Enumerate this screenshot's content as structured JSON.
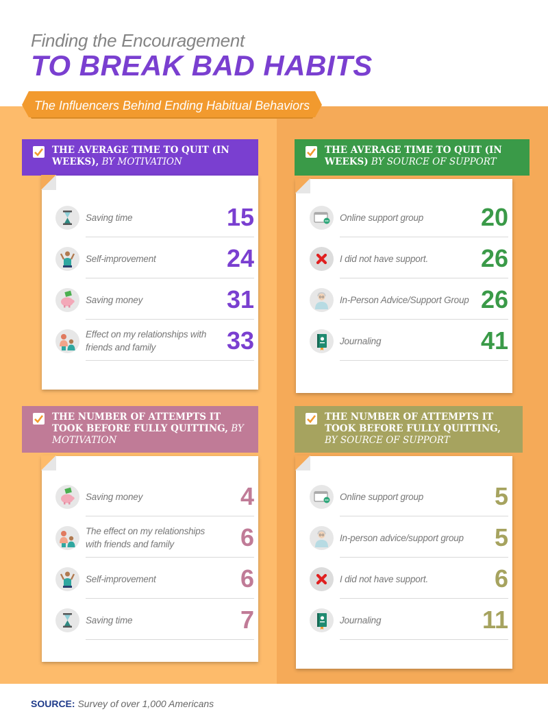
{
  "title": {
    "line1": "Finding the Encouragement",
    "line2": "TO BREAK BAD HABITS"
  },
  "subtitle": "The Influencers Behind Ending Habitual Behaviors",
  "colors": {
    "purple": "#7a3fd0",
    "green": "#3a9a48",
    "mauve": "#c07b97",
    "olive": "#a6a35f",
    "orange": "#f29a2e"
  },
  "chart_data": [
    {
      "type": "table",
      "title_bold": "THE AVERAGE TIME TO QUIT (IN WEEKS),",
      "title_italic": "BY MOTIVATION",
      "categories": [
        "Saving time",
        "Self-improvement",
        "Saving money",
        "Effect on my relationships with friends and family"
      ],
      "values": [
        15,
        24,
        31,
        33
      ],
      "icons": [
        "hourglass-icon",
        "person-cheer-icon",
        "piggy-bank-icon",
        "family-icon"
      ]
    },
    {
      "type": "table",
      "title_bold": "THE AVERAGE TIME TO QUIT (IN WEEKS)",
      "title_italic": "BY SOURCE OF SUPPORT",
      "categories": [
        "Online support group",
        "I did not have support.",
        "In-Person Advice/Support Group",
        "Journaling"
      ],
      "values": [
        20,
        26,
        26,
        41
      ],
      "icons": [
        "computer-chat-icon",
        "red-x-icon",
        "elder-person-icon",
        "journal-icon"
      ]
    },
    {
      "type": "table",
      "title_bold": "THE NUMBER OF ATTEMPTS IT TOOK BEFORE FULLY QUITTING,",
      "title_italic": "BY MOTIVATION",
      "categories": [
        "Saving money",
        "The effect on my relationships with friends and family",
        "Self-improvement",
        "Saving time"
      ],
      "values": [
        4,
        6,
        6,
        7
      ],
      "icons": [
        "piggy-bank-icon",
        "family-icon",
        "person-cheer-icon",
        "hourglass-icon"
      ]
    },
    {
      "type": "table",
      "title_bold": "THE NUMBER OF ATTEMPTS IT TOOK BEFORE FULLY QUITTING,",
      "title_italic": "BY SOURCE OF SUPPORT",
      "categories": [
        "Online support group",
        "In-person advice/support group",
        "I did not have support.",
        "Journaling"
      ],
      "values": [
        5,
        5,
        6,
        11
      ],
      "icons": [
        "computer-chat-icon",
        "elder-person-icon",
        "red-x-icon",
        "journal-icon"
      ]
    }
  ],
  "source": {
    "label": "SOURCE:",
    "text": "Survey of over 1,000 Americans"
  }
}
